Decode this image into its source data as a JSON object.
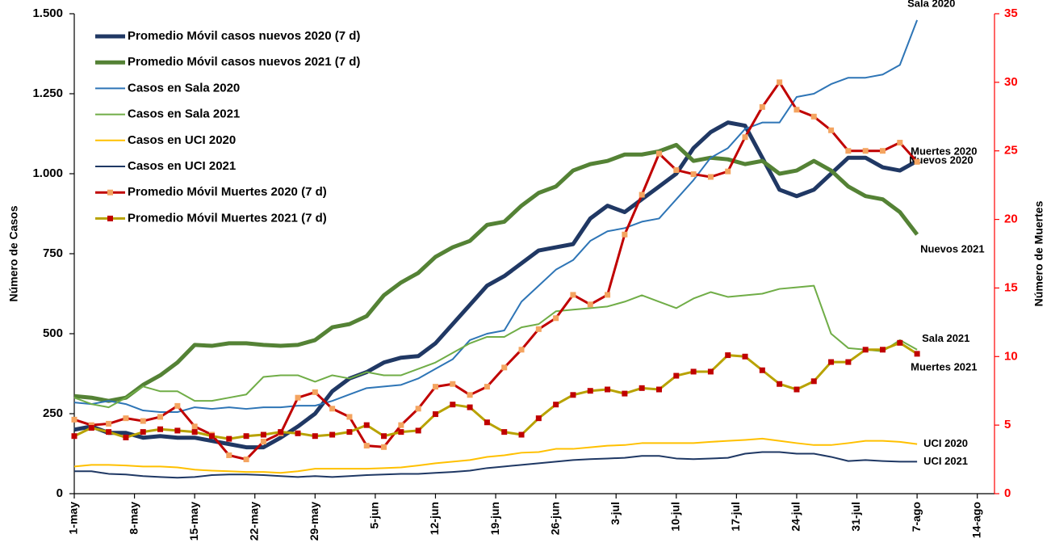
{
  "chart_data": {
    "type": "line",
    "y_label": "Número de Casos",
    "y2_label": "Número de Muertes",
    "y2_color": "#ff0000",
    "x": [
      0,
      2,
      4,
      6,
      8,
      10,
      12,
      14,
      16,
      18,
      20,
      22,
      24,
      26,
      28,
      30,
      32,
      34,
      36,
      38,
      40,
      42,
      44,
      46,
      48,
      50,
      52,
      54,
      56,
      58,
      60,
      62,
      64,
      66,
      68,
      70,
      72,
      74,
      76,
      78,
      80,
      82,
      84,
      86,
      88,
      90,
      92,
      94,
      96,
      98
    ],
    "xlim": [
      0,
      107
    ],
    "xticks": [
      {
        "value": 0,
        "label": "1-may"
      },
      {
        "value": 7,
        "label": "8-may"
      },
      {
        "value": 14,
        "label": "15-may"
      },
      {
        "value": 21,
        "label": "22-may"
      },
      {
        "value": 28,
        "label": "29-may"
      },
      {
        "value": 35,
        "label": "5-jun"
      },
      {
        "value": 42,
        "label": "12-jun"
      },
      {
        "value": 49,
        "label": "19-jun"
      },
      {
        "value": 56,
        "label": "26-jun"
      },
      {
        "value": 63,
        "label": "3-jul"
      },
      {
        "value": 70,
        "label": "10-jul"
      },
      {
        "value": 77,
        "label": "17-jul"
      },
      {
        "value": 84,
        "label": "24-jul"
      },
      {
        "value": 91,
        "label": "31-jul"
      },
      {
        "value": 98,
        "label": "7-ago"
      },
      {
        "value": 105,
        "label": "14-ago"
      }
    ],
    "ylim": [
      0,
      1500
    ],
    "yticks": [
      0,
      250,
      500,
      750,
      {
        "value": 1000,
        "label": "1.000"
      },
      {
        "value": 1250,
        "label": "1.250"
      },
      {
        "value": 1500,
        "label": "1.500"
      }
    ],
    "y2lim": [
      0,
      35
    ],
    "y2ticks": [
      0,
      5,
      10,
      15,
      20,
      25,
      30,
      35
    ],
    "series": [
      {
        "name": "Promedio Móvil casos nuevos 2020 (7 d)",
        "end_label": "Nuevos 2020",
        "color": "#203864",
        "width": 5,
        "values": [
          200,
          210,
          190,
          190,
          175,
          180,
          175,
          175,
          165,
          155,
          145,
          145,
          175,
          210,
          250,
          320,
          360,
          380,
          410,
          425,
          430,
          470,
          530,
          590,
          650,
          680,
          720,
          760,
          770,
          780,
          860,
          900,
          880,
          920,
          960,
          1000,
          1080,
          1130,
          1160,
          1150,
          1050,
          950,
          930,
          950,
          1000,
          1050,
          1050,
          1020,
          1010,
          1040
        ]
      },
      {
        "name": "Promedio Móvil casos nuevos 2021 (7 d)",
        "end_label": "Nuevos 2021",
        "color": "#548235",
        "width": 5,
        "values": [
          305,
          300,
          290,
          300,
          340,
          370,
          410,
          465,
          462,
          470,
          470,
          465,
          462,
          465,
          480,
          520,
          530,
          555,
          620,
          660,
          690,
          740,
          770,
          790,
          840,
          850,
          900,
          940,
          960,
          1010,
          1030,
          1040,
          1060,
          1060,
          1070,
          1090,
          1040,
          1050,
          1045,
          1030,
          1040,
          1000,
          1010,
          1040,
          1010,
          960,
          930,
          920,
          880,
          810
        ]
      },
      {
        "name": "Casos en Sala 2020",
        "end_label": "Sala 2020",
        "color": "#2e75b6",
        "width": 2,
        "values": [
          285,
          280,
          290,
          280,
          260,
          255,
          255,
          270,
          265,
          270,
          265,
          270,
          270,
          275,
          275,
          290,
          310,
          330,
          335,
          340,
          360,
          390,
          420,
          480,
          500,
          510,
          600,
          650,
          700,
          730,
          790,
          820,
          830,
          850,
          860,
          920,
          980,
          1050,
          1080,
          1140,
          1160,
          1160,
          1240,
          1250,
          1280,
          1300,
          1300,
          1310,
          1340,
          1480
        ]
      },
      {
        "name": "Casos en Sala 2021",
        "end_label": "Sala 2021",
        "color": "#70ad47",
        "width": 2,
        "values": [
          300,
          280,
          270,
          300,
          335,
          320,
          320,
          290,
          290,
          300,
          310,
          365,
          370,
          370,
          350,
          370,
          360,
          380,
          370,
          370,
          390,
          410,
          440,
          470,
          490,
          490,
          520,
          530,
          570,
          575,
          580,
          585,
          600,
          620,
          600,
          580,
          610,
          630,
          615,
          620,
          625,
          640,
          645,
          650,
          500,
          455,
          450,
          445,
          480,
          450
        ]
      },
      {
        "name": "Casos en UCI 2020",
        "end_label": "UCI 2020",
        "color": "#ffc000",
        "width": 2,
        "values": [
          85,
          90,
          90,
          88,
          85,
          85,
          82,
          75,
          72,
          70,
          68,
          68,
          65,
          70,
          78,
          78,
          78,
          78,
          80,
          82,
          88,
          95,
          100,
          105,
          115,
          120,
          128,
          130,
          140,
          140,
          145,
          150,
          152,
          158,
          158,
          158,
          158,
          162,
          165,
          168,
          172,
          165,
          158,
          152,
          152,
          158,
          165,
          165,
          162,
          155
        ]
      },
      {
        "name": "Casos en UCI 2021",
        "end_label": "UCI 2021",
        "color": "#1f3864",
        "width": 2,
        "values": [
          70,
          70,
          62,
          60,
          55,
          52,
          50,
          52,
          58,
          60,
          60,
          58,
          55,
          52,
          55,
          52,
          55,
          58,
          60,
          62,
          62,
          65,
          68,
          72,
          80,
          85,
          90,
          95,
          100,
          105,
          108,
          110,
          112,
          118,
          118,
          110,
          108,
          110,
          112,
          125,
          130,
          130,
          125,
          125,
          115,
          102,
          105,
          102,
          100,
          100
        ]
      },
      {
        "name": "Promedio Móvil Muertes 2020 (7 d)",
        "end_label": "Muertes 2020",
        "color": "#c00000",
        "marker_color": "#f4a460",
        "width": 3,
        "axis": "y2",
        "values": [
          5.4,
          5.0,
          5.1,
          5.5,
          5.3,
          5.6,
          6.4,
          4.9,
          4.3,
          2.8,
          2.5,
          3.8,
          4.4,
          7.0,
          7.4,
          6.2,
          5.6,
          3.5,
          3.4,
          5.0,
          6.2,
          7.8,
          8.0,
          7.2,
          7.8,
          9.2,
          10.5,
          12.0,
          12.8,
          14.5,
          13.8,
          14.5,
          18.9,
          21.8,
          24.8,
          23.6,
          23.3,
          23.1,
          23.5,
          26.0,
          28.2,
          30.0,
          28.0,
          27.5,
          26.5,
          25.0,
          25.0,
          25.0,
          25.6,
          24.2
        ]
      },
      {
        "name": "Promedio Móvil Muertes 2021 (7 d)",
        "end_label": "Muertes 2021",
        "color": "#b8a200",
        "marker_color": "#c00000",
        "width": 3,
        "axis": "y2",
        "values": [
          4.2,
          4.8,
          4.5,
          4.1,
          4.5,
          4.7,
          4.6,
          4.5,
          4.2,
          4.0,
          4.2,
          4.3,
          4.5,
          4.4,
          4.2,
          4.3,
          4.5,
          5.0,
          4.2,
          4.5,
          4.6,
          5.8,
          6.5,
          6.3,
          5.2,
          4.5,
          4.3,
          5.5,
          6.5,
          7.2,
          7.5,
          7.6,
          7.3,
          7.7,
          7.6,
          8.6,
          8.9,
          8.9,
          10.1,
          10.0,
          9.0,
          8.0,
          7.6,
          8.2,
          9.6,
          9.6,
          10.5,
          10.5,
          11.0,
          10.2
        ]
      }
    ]
  }
}
